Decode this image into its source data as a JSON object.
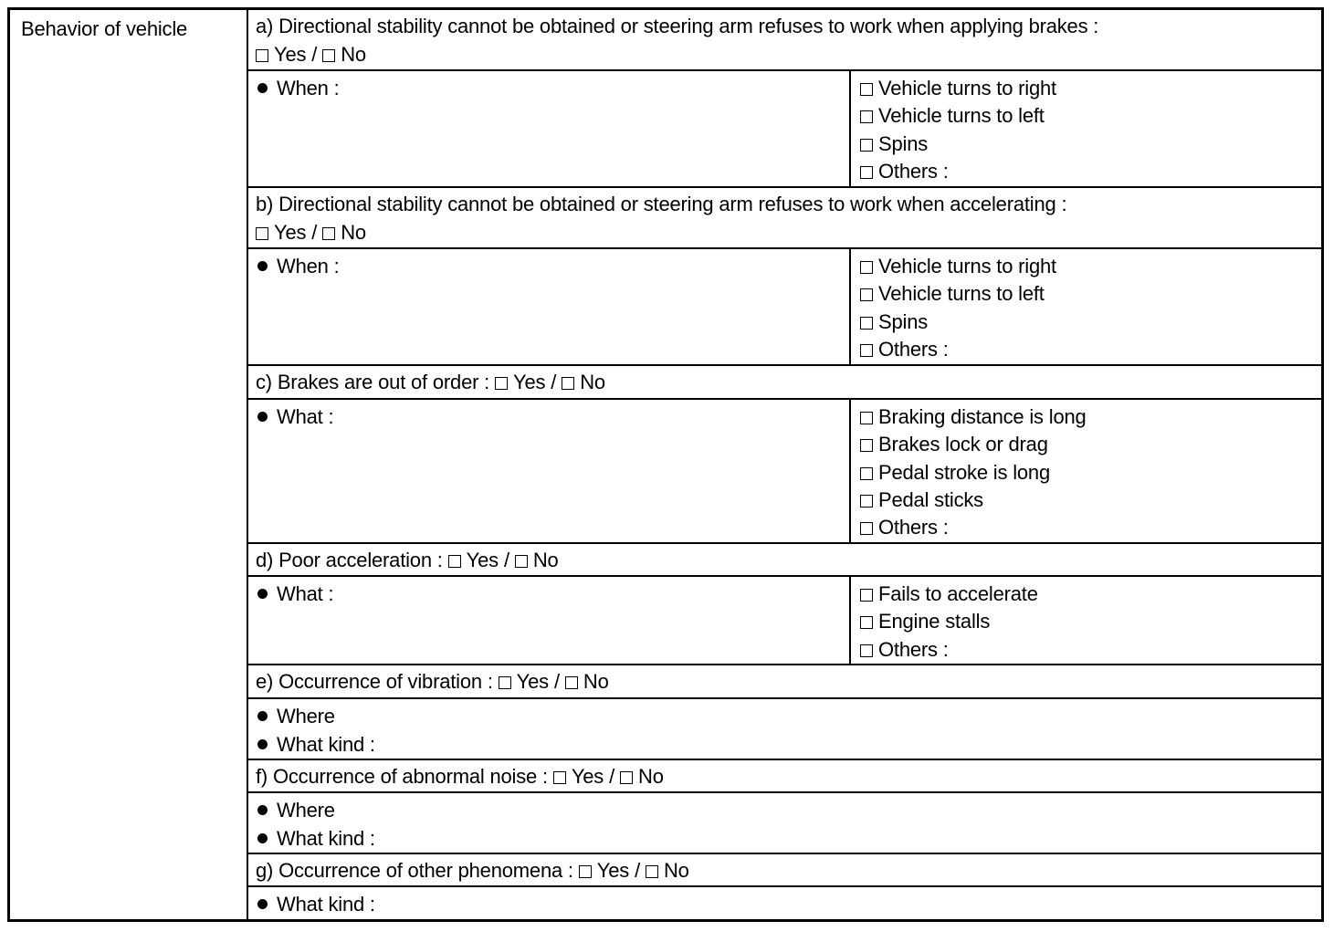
{
  "left_label": "Behavior of vehicle",
  "yes_label": "Yes",
  "no_label": "No",
  "separator": "/",
  "sections": [
    {
      "title": "a) Directional stability cannot be obtained or steering arm refuses to work when applying brakes :",
      "yesno_newline": true,
      "details": [
        "When :"
      ],
      "options": [
        "Vehicle turns to right",
        "Vehicle turns to left",
        "Spins",
        "Others :"
      ]
    },
    {
      "title": "b) Directional stability cannot be obtained or steering arm refuses to work when accelerating :",
      "yesno_newline": true,
      "details": [
        "When :"
      ],
      "options": [
        "Vehicle turns to right",
        "Vehicle turns to left",
        "Spins",
        "Others :"
      ]
    },
    {
      "title": "c) Brakes are out of order :",
      "yesno_newline": false,
      "details": [
        "What :"
      ],
      "options": [
        "Braking distance is long",
        "Brakes lock or drag",
        "Pedal stroke is long",
        "Pedal sticks",
        "Others :"
      ]
    },
    {
      "title": "d) Poor acceleration :",
      "yesno_newline": false,
      "details": [
        "What :"
      ],
      "options": [
        "Fails to accelerate",
        "Engine stalls",
        "Others :"
      ]
    },
    {
      "title": "e) Occurrence of vibration :",
      "yesno_newline": false,
      "details": [
        "Where",
        "What kind :"
      ],
      "options": []
    },
    {
      "title": "f) Occurrence of abnormal noise :",
      "yesno_newline": false,
      "details": [
        "Where",
        "What kind :"
      ],
      "options": []
    },
    {
      "title": "g) Occurrence of other phenomena :",
      "yesno_newline": false,
      "details": [
        "What kind :"
      ],
      "options": []
    }
  ]
}
